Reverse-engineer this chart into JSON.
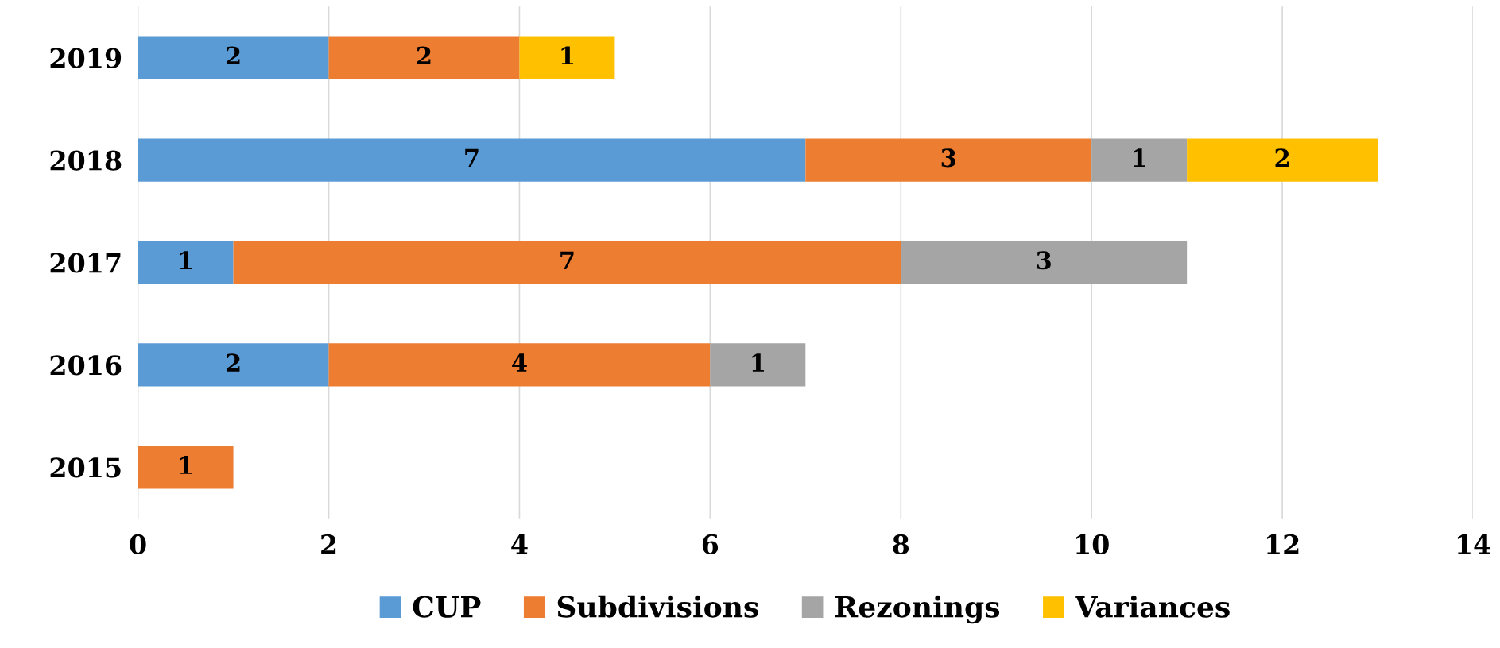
{
  "chart_data": {
    "type": "bar",
    "orientation": "horizontal",
    "stacked": true,
    "categories": [
      "2019",
      "2018",
      "2017",
      "2016",
      "2015"
    ],
    "series": [
      {
        "name": "CUP",
        "color": "#5b9bd5",
        "values": [
          2,
          7,
          1,
          2,
          null
        ]
      },
      {
        "name": "Subdivisions",
        "color": "#ed7d31",
        "values": [
          2,
          3,
          7,
          4,
          1
        ]
      },
      {
        "name": "Rezonings",
        "color": "#a5a5a5",
        "values": [
          null,
          1,
          3,
          1,
          null
        ]
      },
      {
        "name": "Variances",
        "color": "#ffc000",
        "values": [
          1,
          2,
          null,
          null,
          null
        ]
      }
    ],
    "xlim": [
      0,
      14
    ],
    "xticks": [
      0,
      2,
      4,
      6,
      8,
      10,
      12,
      14
    ],
    "grid": "x",
    "legend": "bottom",
    "data_labels": true
  }
}
